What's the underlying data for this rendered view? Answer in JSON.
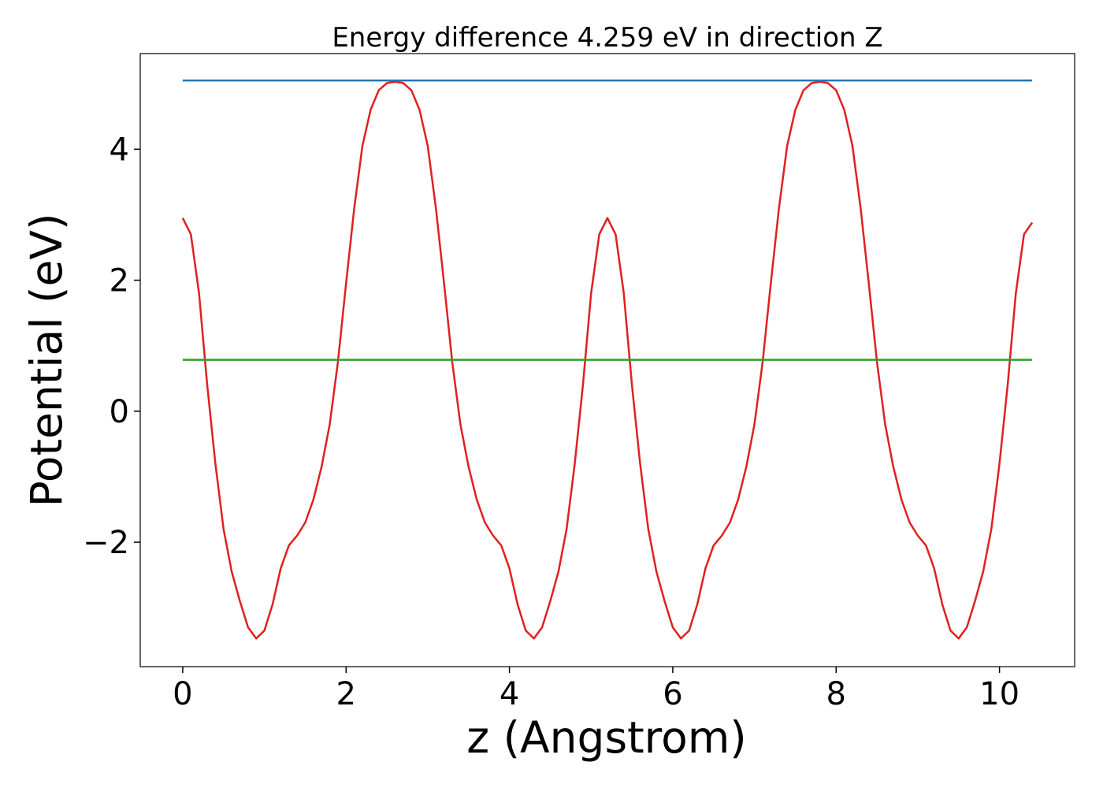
{
  "chart_data": {
    "type": "line",
    "title": "Energy difference 4.259 eV in direction Z",
    "xlabel": "z (Angstrom)",
    "ylabel": "Potential (eV)",
    "xlim": [
      -0.52,
      10.92
    ],
    "ylim": [
      -3.9,
      5.46
    ],
    "xticks": [
      0,
      2,
      4,
      6,
      8,
      10
    ],
    "yticks": [
      {
        "value": -2,
        "label": "−2"
      },
      0,
      2,
      4
    ],
    "grid": false,
    "series": [
      {
        "color": "#e02020",
        "x": [
          0,
          0.1,
          0.2,
          0.3,
          0.4,
          0.5,
          0.6,
          0.7,
          0.8,
          0.9,
          1.0,
          1.1,
          1.2,
          1.3,
          1.4,
          1.5,
          1.6,
          1.7,
          1.8,
          1.9,
          2.0,
          2.1,
          2.2,
          2.3,
          2.4,
          2.5,
          2.6,
          2.7,
          2.8,
          2.9,
          3.0,
          3.1,
          3.2,
          3.3,
          3.4,
          3.5,
          3.6,
          3.7,
          3.8,
          3.9,
          4.0,
          4.1,
          4.2,
          4.3,
          4.4,
          4.5,
          4.6,
          4.7,
          4.8,
          4.9,
          5.0,
          5.1,
          5.2,
          5.3,
          5.4,
          5.5,
          5.6,
          5.7,
          5.8,
          5.9,
          6.0,
          6.1,
          6.2,
          6.3,
          6.4,
          6.5,
          6.6,
          6.7,
          6.8,
          6.9,
          7.0,
          7.1,
          7.2,
          7.3,
          7.4,
          7.5,
          7.6,
          7.7,
          7.8,
          7.9,
          8.0,
          8.1,
          8.2,
          8.3,
          8.4,
          8.5,
          8.6,
          8.7,
          8.8,
          8.9,
          9.0,
          9.1,
          9.2,
          9.3,
          9.4,
          9.5,
          9.6,
          9.7,
          9.8,
          9.9,
          10.0,
          10.1,
          10.2,
          10.3,
          10.4
        ],
        "values": [
          2.95,
          2.7,
          1.8,
          0.4,
          -0.8,
          -1.8,
          -2.45,
          -2.9,
          -3.3,
          -3.47,
          -3.35,
          -2.95,
          -2.4,
          -2.05,
          -1.9,
          -1.7,
          -1.35,
          -0.85,
          -0.2,
          0.75,
          1.95,
          3.1,
          4.05,
          4.6,
          4.9,
          5.01,
          5.03,
          5.01,
          4.9,
          4.6,
          4.05,
          3.1,
          1.95,
          0.75,
          -0.2,
          -0.85,
          -1.35,
          -1.7,
          -1.9,
          -2.05,
          -2.4,
          -2.95,
          -3.35,
          -3.47,
          -3.3,
          -2.9,
          -2.45,
          -1.8,
          -0.8,
          0.4,
          1.8,
          2.7,
          2.95,
          2.7,
          1.8,
          0.4,
          -0.8,
          -1.8,
          -2.45,
          -2.9,
          -3.3,
          -3.47,
          -3.35,
          -2.95,
          -2.4,
          -2.05,
          -1.9,
          -1.7,
          -1.35,
          -0.85,
          -0.2,
          0.75,
          1.95,
          3.1,
          4.05,
          4.6,
          4.9,
          5.01,
          5.03,
          5.01,
          4.9,
          4.6,
          4.05,
          3.1,
          1.95,
          0.75,
          -0.2,
          -0.85,
          -1.35,
          -1.7,
          -1.9,
          -2.05,
          -2.4,
          -2.95,
          -3.35,
          -3.47,
          -3.3,
          -2.9,
          -2.45,
          -1.8,
          -0.8,
          0.4,
          1.8,
          2.7,
          2.88
        ]
      },
      {
        "color": "#1f77b4",
        "x": [
          0,
          10.4
        ],
        "values": [
          5.05,
          5.05
        ]
      },
      {
        "color": "#2ca02c",
        "x": [
          0,
          10.4
        ],
        "values": [
          0.785,
          0.785
        ]
      }
    ]
  }
}
